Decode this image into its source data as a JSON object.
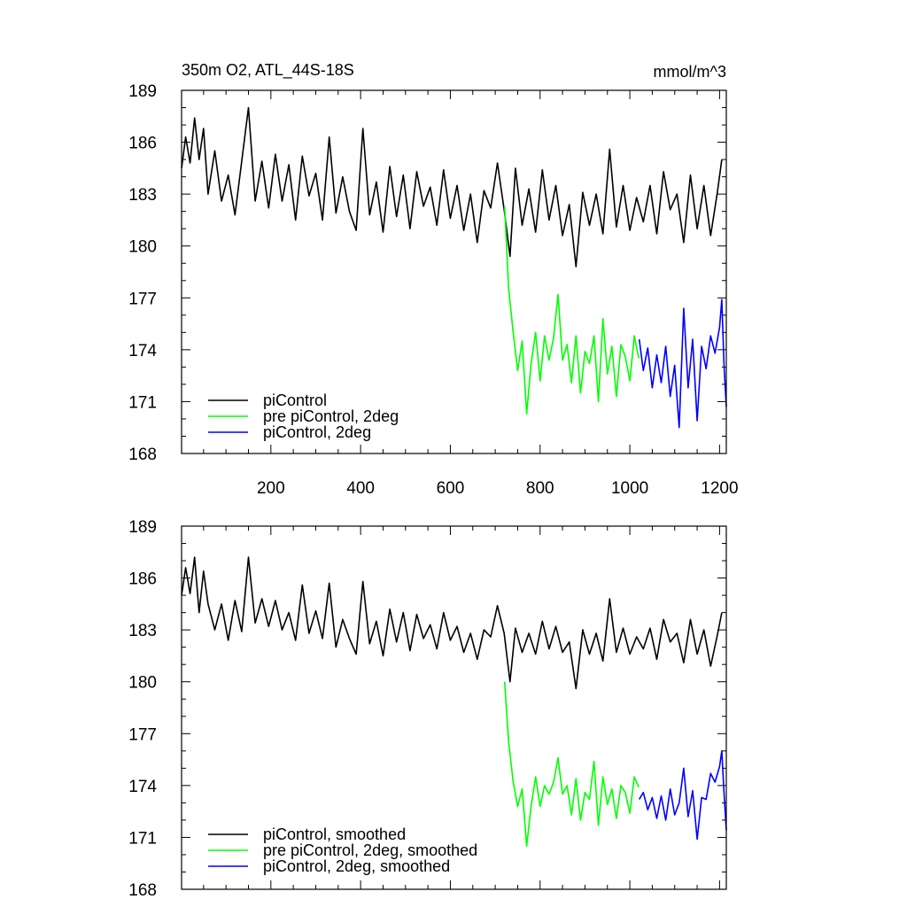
{
  "chart_data": [
    {
      "type": "line",
      "title": "350m O2, ATL_44S-18S",
      "units": "mmol/m^3",
      "xlabel": "",
      "ylabel": "",
      "xlim": [
        1,
        1215
      ],
      "ylim": [
        168,
        189
      ],
      "xticks": [
        200,
        400,
        600,
        800,
        1000,
        1200
      ],
      "yticks": [
        168,
        171,
        174,
        177,
        180,
        183,
        186,
        189
      ],
      "legend_position": "bottom-left",
      "series": [
        {
          "name": "piControl",
          "color": "#000000",
          "x": [
            1,
            10,
            20,
            30,
            40,
            50,
            60,
            75,
            90,
            105,
            120,
            135,
            150,
            165,
            180,
            195,
            210,
            225,
            240,
            255,
            270,
            285,
            300,
            315,
            330,
            345,
            360,
            375,
            390,
            405,
            420,
            435,
            450,
            465,
            480,
            495,
            510,
            525,
            540,
            555,
            570,
            585,
            600,
            615,
            630,
            645,
            660,
            675,
            690,
            705,
            720,
            733,
            745,
            760,
            775,
            790,
            805,
            820,
            835,
            850,
            865,
            880,
            895,
            910,
            925,
            940,
            955,
            970,
            985,
            1000,
            1015,
            1030,
            1045,
            1060,
            1075,
            1090,
            1105,
            1120,
            1135,
            1150,
            1165,
            1180,
            1195,
            1205
          ],
          "values": [
            184.5,
            186.3,
            184.8,
            187.4,
            185.0,
            186.8,
            183.0,
            185.5,
            182.6,
            184.1,
            181.8,
            184.9,
            188.0,
            182.6,
            184.9,
            182.2,
            185.3,
            182.6,
            184.7,
            181.5,
            185.2,
            182.9,
            184.2,
            181.5,
            186.3,
            181.9,
            184.0,
            182.0,
            180.9,
            186.8,
            181.8,
            183.7,
            180.8,
            184.6,
            181.7,
            184.1,
            181.0,
            184.3,
            182.3,
            183.4,
            181.2,
            184.4,
            181.6,
            183.5,
            180.9,
            183.0,
            180.2,
            183.2,
            182.2,
            184.8,
            182.1,
            179.4,
            184.5,
            181.2,
            183.3,
            180.8,
            184.4,
            181.5,
            183.5,
            180.6,
            182.4,
            178.8,
            183.1,
            181.2,
            183.0,
            180.7,
            185.6,
            181.1,
            183.5,
            180.9,
            182.8,
            181.4,
            183.5,
            180.7,
            184.3,
            182.1,
            183.0,
            180.2,
            184.1,
            181.0,
            183.5,
            180.6,
            183.1,
            185.0
          ]
        },
        {
          "name": "pre piControl, 2deg",
          "color": "#00ff00",
          "x": [
            721,
            730,
            740,
            750,
            760,
            770,
            780,
            790,
            800,
            810,
            820,
            830,
            840,
            850,
            860,
            870,
            880,
            890,
            900,
            910,
            920,
            930,
            940,
            950,
            960,
            970,
            980,
            990,
            1000,
            1010,
            1020
          ],
          "values": [
            182.3,
            177.5,
            175.0,
            172.8,
            174.5,
            170.3,
            173.2,
            175.0,
            172.2,
            174.8,
            173.4,
            174.7,
            177.2,
            173.4,
            174.3,
            172.1,
            174.8,
            171.5,
            173.9,
            173.2,
            174.8,
            171.0,
            175.8,
            172.6,
            174.2,
            171.3,
            174.3,
            173.6,
            172.2,
            174.8,
            173.5
          ]
        },
        {
          "name": "piControl, 2deg",
          "color": "#0000ff",
          "x": [
            1021,
            1030,
            1040,
            1050,
            1060,
            1070,
            1080,
            1090,
            1100,
            1110,
            1120,
            1130,
            1140,
            1150,
            1160,
            1170,
            1180,
            1190,
            1200,
            1205,
            1210,
            1215
          ],
          "values": [
            174.6,
            172.8,
            174.1,
            171.8,
            173.7,
            172.1,
            174.2,
            171.3,
            173.1,
            169.5,
            176.4,
            171.8,
            174.6,
            169.9,
            174.2,
            172.9,
            174.8,
            173.8,
            175.3,
            176.9,
            173.0,
            170.7
          ]
        }
      ]
    },
    {
      "type": "line",
      "title": "",
      "xlabel": "",
      "ylabel": "",
      "xlim": [
        1,
        1215
      ],
      "ylim": [
        168,
        189
      ],
      "yticks": [
        168,
        171,
        174,
        177,
        180,
        183,
        186,
        189
      ],
      "legend_position": "bottom-left",
      "series": [
        {
          "name": "piControl, smoothed",
          "color": "#000000",
          "x": [
            1,
            10,
            20,
            30,
            40,
            50,
            60,
            75,
            90,
            105,
            120,
            135,
            150,
            165,
            180,
            195,
            210,
            225,
            240,
            255,
            270,
            285,
            300,
            315,
            330,
            345,
            360,
            375,
            390,
            405,
            420,
            435,
            450,
            465,
            480,
            495,
            510,
            525,
            540,
            555,
            570,
            585,
            600,
            615,
            630,
            645,
            660,
            675,
            690,
            705,
            720,
            733,
            745,
            760,
            775,
            790,
            805,
            820,
            835,
            850,
            865,
            880,
            895,
            910,
            925,
            940,
            955,
            970,
            985,
            1000,
            1015,
            1030,
            1045,
            1060,
            1075,
            1090,
            1105,
            1120,
            1135,
            1150,
            1165,
            1180,
            1195,
            1205
          ],
          "values": [
            185.0,
            186.6,
            185.1,
            187.2,
            184.0,
            186.4,
            184.5,
            183.0,
            184.5,
            182.4,
            184.7,
            182.9,
            187.2,
            183.4,
            184.8,
            183.2,
            184.7,
            183.0,
            184.0,
            182.4,
            185.6,
            182.8,
            184.1,
            182.5,
            185.7,
            182.0,
            183.6,
            182.5,
            181.6,
            185.8,
            182.2,
            183.5,
            181.5,
            184.2,
            182.3,
            184.0,
            181.8,
            183.9,
            182.5,
            183.3,
            181.9,
            184.0,
            182.4,
            183.2,
            181.7,
            182.8,
            181.3,
            183.0,
            182.6,
            184.4,
            182.8,
            180.0,
            183.1,
            181.7,
            182.8,
            181.6,
            183.5,
            181.9,
            183.2,
            181.7,
            182.3,
            179.6,
            183.0,
            181.6,
            182.8,
            181.2,
            184.8,
            181.7,
            183.1,
            181.6,
            182.6,
            181.9,
            183.1,
            181.3,
            183.6,
            182.3,
            182.8,
            181.1,
            183.6,
            181.6,
            183.0,
            180.9,
            182.7,
            184.0
          ]
        },
        {
          "name": "pre piControl, 2deg, smoothed",
          "color": "#00ff00",
          "x": [
            721,
            730,
            740,
            750,
            760,
            770,
            780,
            790,
            800,
            810,
            820,
            830,
            840,
            850,
            860,
            870,
            880,
            890,
            900,
            910,
            920,
            930,
            940,
            950,
            960,
            970,
            980,
            990,
            1000,
            1010,
            1020
          ],
          "values": [
            180.0,
            176.5,
            174.2,
            172.8,
            173.8,
            170.5,
            172.8,
            174.5,
            172.8,
            174.0,
            173.5,
            174.2,
            175.6,
            173.5,
            174.0,
            172.3,
            174.4,
            172.0,
            173.6,
            173.2,
            175.4,
            171.7,
            174.5,
            172.9,
            173.8,
            172.1,
            174.0,
            173.6,
            172.4,
            174.5,
            173.9
          ]
        },
        {
          "name": "piControl, 2deg, smoothed",
          "color": "#0000ff",
          "x": [
            1021,
            1030,
            1040,
            1050,
            1060,
            1070,
            1080,
            1090,
            1100,
            1110,
            1120,
            1130,
            1140,
            1150,
            1160,
            1170,
            1180,
            1190,
            1200,
            1205,
            1210,
            1215
          ],
          "values": [
            173.2,
            173.6,
            172.6,
            173.3,
            172.1,
            173.4,
            172.0,
            173.8,
            172.3,
            173.0,
            175.0,
            172.2,
            173.7,
            170.9,
            173.3,
            173.2,
            174.7,
            174.2,
            175.1,
            176.0,
            173.5,
            171.4
          ]
        }
      ]
    }
  ]
}
